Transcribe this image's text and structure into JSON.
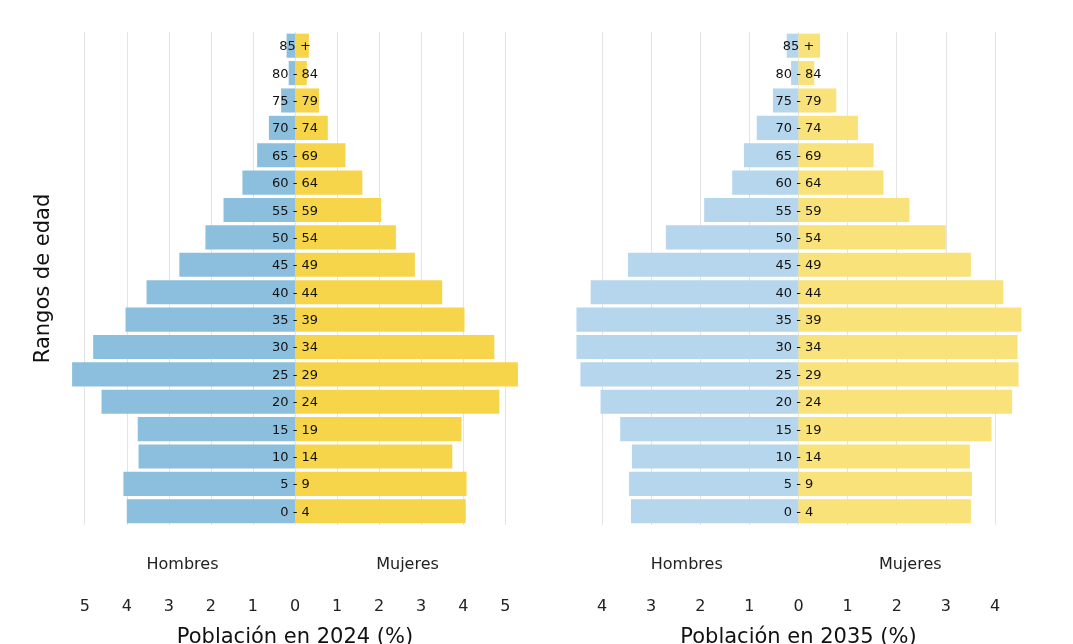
{
  "chart_data": [
    {
      "type": "bar",
      "orientation": "horizontal",
      "ylabel": "Rangos de edad",
      "xlabel": "Población en 2024 (%)",
      "categories": [
        "85 +",
        "80 - 84",
        "75 - 79",
        "70 - 74",
        "65 - 69",
        "60 - 64",
        "55 - 59",
        "50 - 54",
        "45 - 49",
        "40 - 44",
        "35 - 39",
        "30 - 34",
        "25 - 29",
        "20 - 24",
        "15 - 19",
        "10 - 14",
        "5 - 9",
        "0 - 4"
      ],
      "series": [
        {
          "name": "Hombres",
          "color": "#8bbfdd",
          "values": [
            -0.2,
            -0.15,
            -0.33,
            -0.62,
            -0.9,
            -1.25,
            -1.7,
            -2.13,
            -2.75,
            -3.53,
            -4.03,
            -4.8,
            -5.3,
            -4.6,
            -3.74,
            -3.72,
            -4.08,
            -4.0
          ]
        },
        {
          "name": "Mujeres",
          "color": "#f7d54a",
          "values": [
            0.33,
            0.28,
            0.57,
            0.78,
            1.2,
            1.6,
            2.05,
            2.4,
            2.85,
            3.5,
            4.03,
            4.74,
            5.3,
            4.86,
            3.96,
            3.74,
            4.08,
            4.06
          ]
        }
      ],
      "xlim": [
        -5.35,
        5.35
      ],
      "xticks": [
        {
          "value": -5,
          "label": "5"
        },
        {
          "value": -4,
          "label": "4"
        },
        {
          "value": -3,
          "label": "3"
        },
        {
          "value": -2,
          "label": "2"
        },
        {
          "value": -1,
          "label": "1"
        },
        0,
        1,
        2,
        3,
        4,
        5
      ],
      "grid": "x",
      "legend": false,
      "stacked": true
    },
    {
      "type": "bar",
      "orientation": "horizontal",
      "xlabel": "Población en 2035 (%)",
      "categories": [
        "85 +",
        "80 - 84",
        "75 - 79",
        "70 - 74",
        "65 - 69",
        "60 - 64",
        "55 - 59",
        "50 - 54",
        "45 - 49",
        "40 - 44",
        "35 - 39",
        "30 - 34",
        "25 - 29",
        "20 - 24",
        "15 - 19",
        "10 - 14",
        "5 - 9",
        "0 - 4"
      ],
      "series": [
        {
          "name": "Hombres",
          "color": "#b5d6ec",
          "values": [
            -0.24,
            -0.15,
            -0.52,
            -0.85,
            -1.11,
            -1.35,
            -1.92,
            -2.7,
            -3.47,
            -4.23,
            -4.52,
            -4.52,
            -4.44,
            -4.03,
            -3.63,
            -3.39,
            -3.45,
            -3.41
          ]
        },
        {
          "name": "Mujeres",
          "color": "#fae27a",
          "values": [
            0.44,
            0.32,
            0.77,
            1.21,
            1.53,
            1.73,
            2.26,
            3.0,
            3.51,
            4.17,
            4.54,
            4.46,
            4.48,
            4.35,
            3.93,
            3.49,
            3.53,
            3.51
          ]
        }
      ],
      "xlim": [
        -4.55,
        4.55
      ],
      "xticks": [
        {
          "value": -4,
          "label": "4"
        },
        {
          "value": -3,
          "label": "3"
        },
        {
          "value": -2,
          "label": "2"
        },
        {
          "value": -1,
          "label": "1"
        },
        0,
        1,
        2,
        3,
        4
      ],
      "grid": "x",
      "legend": false,
      "stacked": true
    }
  ]
}
